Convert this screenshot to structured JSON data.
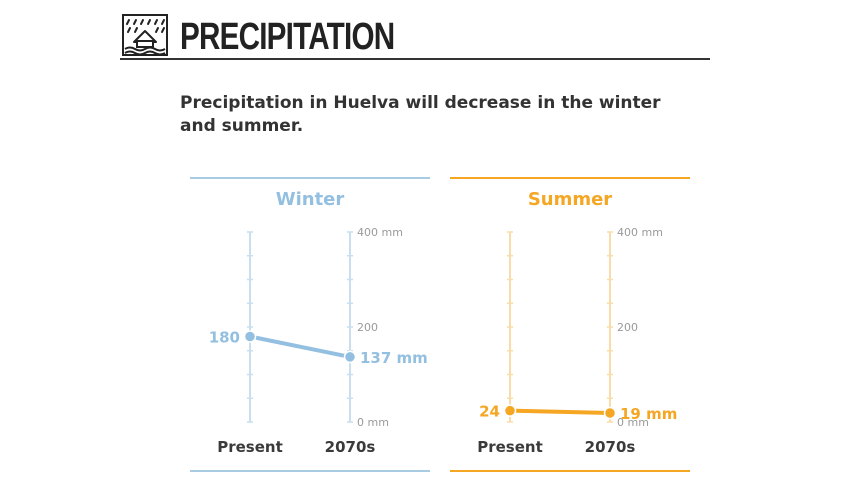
{
  "header": {
    "title": "PRECIPITATION",
    "icon": "rain-house-icon"
  },
  "subtitle": "Precipitation in Huelva will decrease in the winter and summer.",
  "colors": {
    "winter": "#93bfe0",
    "winter_light": "#c9dff0",
    "summer": "#f5a623",
    "summer_light": "#f8dcaa",
    "axis_label": "#9a9a9a",
    "text": "#3a3a3a"
  },
  "chart_data": [
    {
      "type": "line",
      "title": "Winter",
      "categories": [
        "Present",
        "2070s"
      ],
      "values": [
        180,
        137
      ],
      "value_labels": [
        "180",
        "137 mm"
      ],
      "ylim": [
        0,
        400
      ],
      "y_ticks": [
        0,
        200,
        400
      ],
      "y_tick_labels": [
        "0 mm",
        "200",
        "400 mm"
      ],
      "unit": "mm"
    },
    {
      "type": "line",
      "title": "Summer",
      "categories": [
        "Present",
        "2070s"
      ],
      "values": [
        24,
        19
      ],
      "value_labels": [
        "24",
        "19 mm"
      ],
      "ylim": [
        0,
        400
      ],
      "y_ticks": [
        0,
        200,
        400
      ],
      "y_tick_labels": [
        "0 mm",
        "200",
        "400 mm"
      ],
      "unit": "mm"
    }
  ]
}
